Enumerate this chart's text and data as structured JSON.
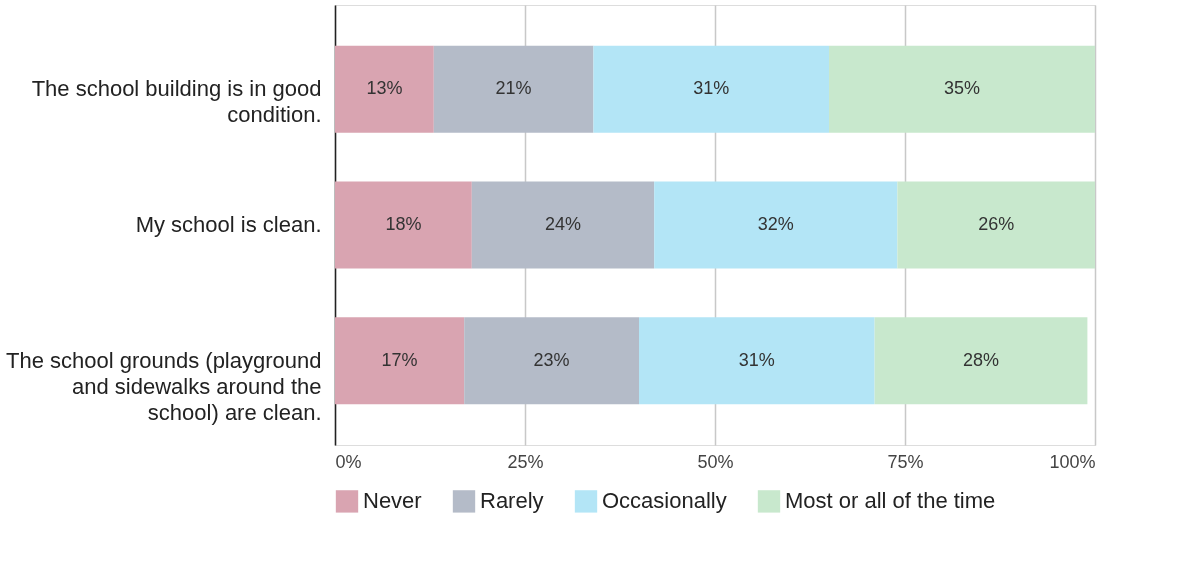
{
  "chart_data": {
    "type": "bar",
    "orientation": "horizontal",
    "stacked": true,
    "categories": [
      "The school building is in good condition.",
      "My school is clean.",
      "The school grounds (playground and sidewalks around the school) are clean."
    ],
    "series": [
      {
        "name": "Never",
        "color": "#d9a4b1",
        "values": [
          13,
          18,
          17
        ],
        "value_labels": [
          "13%",
          "18%",
          "17%"
        ]
      },
      {
        "name": "Rarely",
        "color": "#b4bbc8",
        "values": [
          21,
          24,
          23
        ],
        "value_labels": [
          "21%",
          "24%",
          "23%"
        ]
      },
      {
        "name": "Occasionally",
        "color": "#b3e5f6",
        "values": [
          31,
          32,
          31
        ],
        "value_labels": [
          "31%",
          "32%",
          "31%"
        ]
      },
      {
        "name": "Most or all of the time",
        "color": "#c8e8cd",
        "values": [
          35,
          26,
          28
        ],
        "value_labels": [
          "35%",
          "26%",
          "28%"
        ]
      }
    ],
    "xlim": [
      0,
      100
    ],
    "xticks": [
      {
        "value": 0,
        "label": "0%"
      },
      {
        "value": 25,
        "label": "25%"
      },
      {
        "value": 50,
        "label": "50%"
      },
      {
        "value": 75,
        "label": "75%"
      },
      {
        "value": 100,
        "label": "100%"
      }
    ],
    "grid": "x",
    "legend": "bottom"
  }
}
